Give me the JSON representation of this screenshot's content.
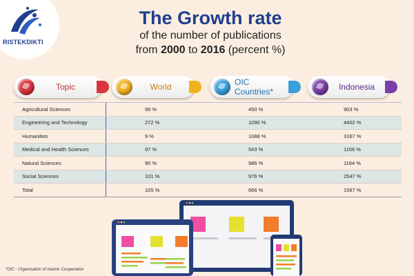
{
  "logo": {
    "text": "RISTEKDIKTI"
  },
  "title": {
    "main": "The Growth rate",
    "line1": "of the number of publications",
    "line2_pre": "from ",
    "line2_year1": "2000",
    "line2_mid": " to ",
    "line2_year2": "2016",
    "line2_post": " (percent %)"
  },
  "headers": [
    {
      "label": "Topic",
      "color": "#d8353d",
      "label_color": "#c0303a"
    },
    {
      "label": "World",
      "color": "#f0b21e",
      "label_color": "#c47f16"
    },
    {
      "label": "OIC Countries*",
      "color": "#3aa0db",
      "label_color": "#1f6fb2"
    },
    {
      "label": "Indonesia",
      "color": "#7a3fa6",
      "label_color": "#5b2c86"
    }
  ],
  "rows": [
    {
      "topic": "Agricultural Sciences",
      "world": "99 %",
      "oic": "450 %",
      "indonesia": "903 %"
    },
    {
      "topic": "Engineering and Technology",
      "world": "272 %",
      "oic": "1090 %",
      "indonesia": "4402 %"
    },
    {
      "topic": "Humanities",
      "world": "9 %",
      "oic": "1088 %",
      "indonesia": "3167 %"
    },
    {
      "topic": "Medical and Health Sciences",
      "world": "97 %",
      "oic": "543 %",
      "indonesia": "1156 %"
    },
    {
      "topic": "Natural Sciences",
      "world": "90 %",
      "oic": "986 %",
      "indonesia": "1164 %"
    },
    {
      "topic": "Social Sciences",
      "world": "101 %",
      "oic": "976 %",
      "indonesia": "2547 %"
    },
    {
      "topic": "Total",
      "world": "105 %",
      "oic": "666 %",
      "indonesia": "1567 %"
    }
  ],
  "footnote": "*OIC     : Organisation of Islamic Cooperation",
  "colors": {
    "background": "#fbeee0",
    "title": "#1f3f8f",
    "row_shade": "#dde5e5",
    "divider": "#4a5fb0"
  }
}
